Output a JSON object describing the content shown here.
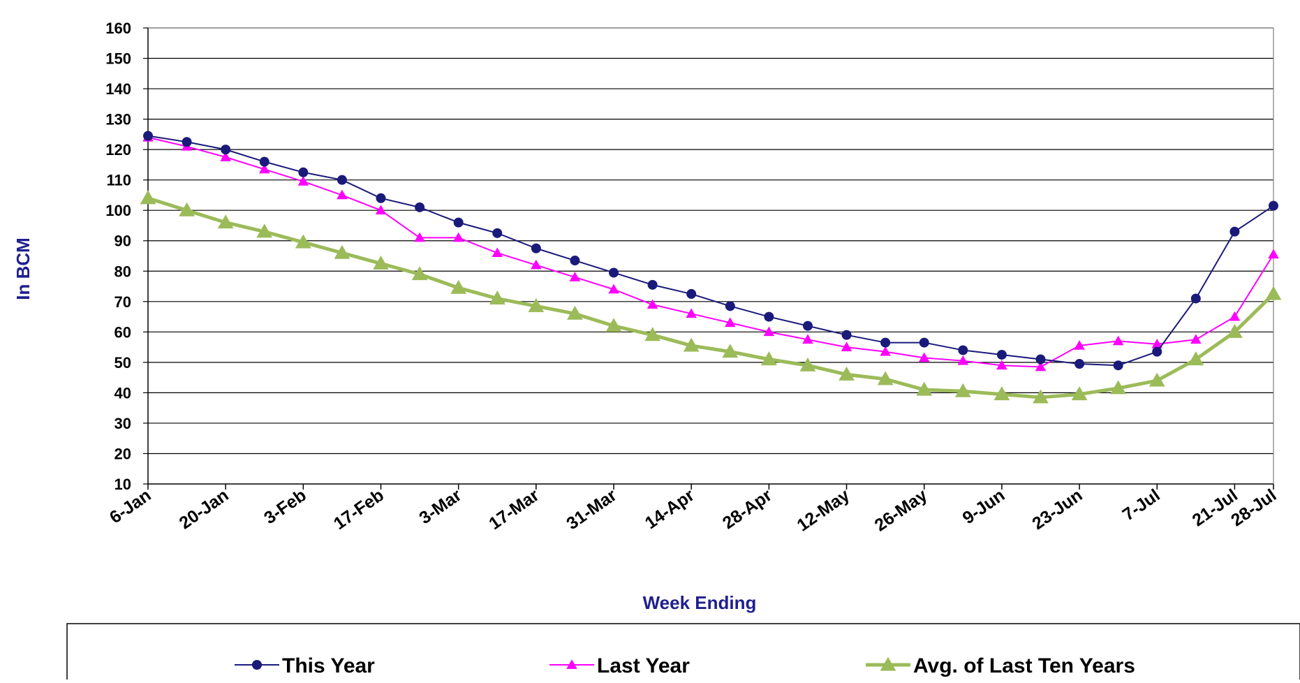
{
  "chart_data": {
    "type": "line",
    "title": "",
    "xlabel": "Week Ending",
    "ylabel": "In BCM",
    "ylim": [
      10,
      160
    ],
    "yticks": [
      10,
      20,
      30,
      40,
      50,
      60,
      70,
      80,
      90,
      100,
      110,
      120,
      130,
      140,
      150,
      160
    ],
    "grid": "horizontal",
    "legend_position": "bottom",
    "x": [
      "6-Jan",
      "13-Jan",
      "20-Jan",
      "27-Jan",
      "3-Feb",
      "10-Feb",
      "17-Feb",
      "24-Feb",
      "3-Mar",
      "10-Mar",
      "17-Mar",
      "24-Mar",
      "31-Mar",
      "7-Apr",
      "14-Apr",
      "21-Apr",
      "28-Apr",
      "5-May",
      "12-May",
      "19-May",
      "26-May",
      "2-Jun",
      "9-Jun",
      "16-Jun",
      "23-Jun",
      "30-Jun",
      "7-Jul",
      "14-Jul",
      "21-Jul",
      "28-Jul"
    ],
    "x_tick_labels": [
      "6-Jan",
      "20-Jan",
      "3-Feb",
      "17-Feb",
      "3-Mar",
      "17-Mar",
      "31-Mar",
      "14-Apr",
      "28-Apr",
      "12-May",
      "26-May",
      "9-Jun",
      "23-Jun",
      "7-Jul",
      "21-Jul",
      "28-Jul"
    ],
    "series": [
      {
        "name": "This Year",
        "color": "#1a1a7a",
        "marker": "circle",
        "values": [
          124.5,
          122.5,
          120,
          116,
          112.5,
          110,
          104,
          101,
          96,
          92.5,
          87.5,
          83.5,
          79.5,
          75.5,
          72.5,
          68.5,
          65,
          62,
          59,
          56.5,
          56.5,
          54,
          52.5,
          51,
          49.5,
          49,
          53.5,
          71,
          93,
          101.5
        ]
      },
      {
        "name": "Last Year",
        "color": "#ff00ff",
        "marker": "triangle",
        "values": [
          124,
          121,
          117.5,
          113.5,
          109.5,
          105,
          100,
          91,
          91,
          86,
          82,
          78,
          74,
          69,
          66,
          63,
          60,
          57.5,
          55,
          53.5,
          51.5,
          50.5,
          49,
          48.5,
          55.5,
          57,
          56,
          57.5,
          65,
          85.5
        ]
      },
      {
        "name": "Avg. of Last  Ten Years",
        "color": "#9bbb59",
        "marker": "triangle",
        "values": [
          104,
          100,
          96,
          93,
          89.5,
          86,
          82.5,
          79,
          74.5,
          71,
          68.5,
          66,
          62,
          59,
          55.5,
          53.5,
          51,
          49,
          46,
          44.5,
          41,
          40.5,
          39.5,
          38.5,
          39.5,
          41.5,
          44,
          51,
          60,
          72.5
        ]
      }
    ]
  }
}
